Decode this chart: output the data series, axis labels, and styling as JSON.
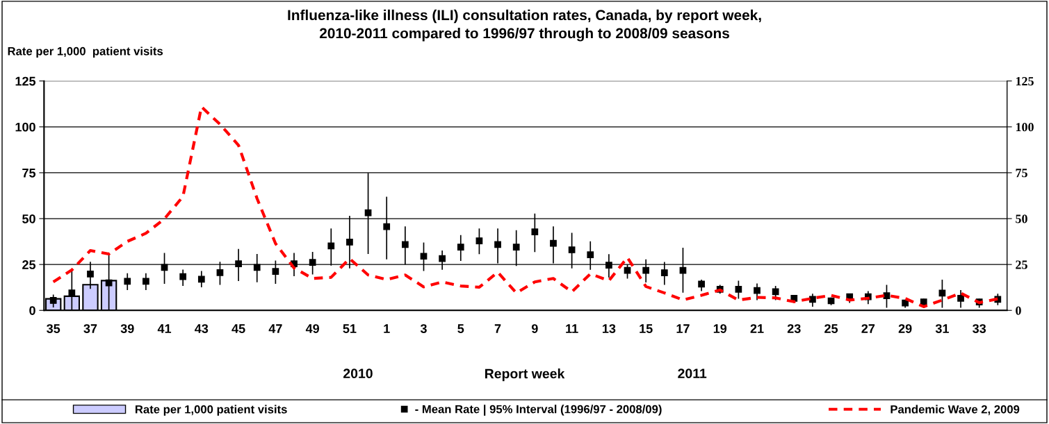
{
  "chart_data": {
    "type": "bar",
    "title": "Influenza-like illness (ILI) consultation rates, Canada, by report week,\n2010-2011 compared to 1996/97 through to 2008/09 seasons",
    "ylabel": "Rate per 1,000  patient visits",
    "xlabel": "Report week",
    "categories": [
      "35",
      null,
      "37",
      null,
      "39",
      null,
      "41",
      null,
      "43",
      null,
      "45",
      null,
      "47",
      null,
      "49",
      null,
      "51",
      null,
      "1",
      null,
      "3",
      null,
      "5",
      null,
      "7",
      null,
      "9",
      null,
      "11",
      null,
      "13",
      null,
      "15",
      null,
      "17",
      null,
      "19",
      null,
      "21",
      null,
      "23",
      null,
      "25",
      null,
      "27",
      null,
      "29",
      null,
      "31",
      null,
      "33",
      null
    ],
    "series": [
      {
        "name": "Rate per 1,000 patient visits",
        "color": "#ccccff",
        "values": [
          6.3,
          7.7,
          14.0,
          16.2,
          null,
          null,
          null,
          null,
          null,
          null,
          null,
          null,
          null,
          null,
          null,
          null,
          null,
          null,
          null,
          null,
          null,
          null,
          null,
          null,
          null,
          null,
          null,
          null,
          null,
          null,
          null,
          null,
          null,
          null,
          null,
          null,
          null,
          null,
          null,
          null,
          null,
          null,
          null,
          null,
          null,
          null,
          null,
          null,
          null,
          null,
          null,
          null
        ]
      },
      {
        "name": "- Mean Rate | 95% Interval (1996/97 - 2008/09)",
        "type": "scatter",
        "color": "#000000",
        "marker": "square",
        "values": [
          5.4,
          9.5,
          19.8,
          15.0,
          15.8,
          15.8,
          23.4,
          18.4,
          17.0,
          20.6,
          25.4,
          23.4,
          21.2,
          25.4,
          26.1,
          35.1,
          37.2,
          53.2,
          45.6,
          35.9,
          29.5,
          28.2,
          34.5,
          37.9,
          35.9,
          34.5,
          42.8,
          36.5,
          33.0,
          30.3,
          24.6,
          21.8,
          21.8,
          20.5,
          21.8,
          14.3,
          11.5,
          11.5,
          10.8,
          10.2,
          6.6,
          6.0,
          5.2,
          7.4,
          7.4,
          8.0,
          4.0,
          4.6,
          9.4,
          6.6,
          4.6,
          6.0
        ],
        "errors": [
          [
            1.6,
            8.6
          ],
          [
            0,
            22.2
          ],
          [
            11.7,
            26.5
          ],
          [
            0,
            30.0
          ],
          [
            11.1,
            20.2
          ],
          [
            11.1,
            20.2
          ],
          [
            14.5,
            31.3
          ],
          [
            13.3,
            22.2
          ],
          [
            12.6,
            21.5
          ],
          [
            13.9,
            26.5
          ],
          [
            16.0,
            33.5
          ],
          [
            15.3,
            30.7
          ],
          [
            14.5,
            27.1
          ],
          [
            18.6,
            31.3
          ],
          [
            19.6,
            31.9
          ],
          [
            24.4,
            44.6
          ],
          [
            22.9,
            51.5
          ],
          [
            30.7,
            74.9
          ],
          [
            27.8,
            61.9
          ],
          [
            25.0,
            45.8
          ],
          [
            21.5,
            37.0
          ],
          [
            22.1,
            32.6
          ],
          [
            26.9,
            41.0
          ],
          [
            30.6,
            44.6
          ],
          [
            25.6,
            44.6
          ],
          [
            24.2,
            43.7
          ],
          [
            31.8,
            52.8
          ],
          [
            25.6,
            45.8
          ],
          [
            22.9,
            42.3
          ],
          [
            22.1,
            37.6
          ],
          [
            17.9,
            30.6
          ],
          [
            17.3,
            25.0
          ],
          [
            15.2,
            27.8
          ],
          [
            13.9,
            26.4
          ],
          [
            9.6,
            34.1
          ],
          [
            10.5,
            16.7
          ],
          [
            9.1,
            13.9
          ],
          [
            6.3,
            16.2
          ],
          [
            5.6,
            14.7
          ],
          [
            5.6,
            13.3
          ],
          [
            4.1,
            7.7
          ],
          [
            2.0,
            9.1
          ],
          [
            2.8,
            7.0
          ],
          [
            4.1,
            9.1
          ],
          [
            3.4,
            10.5
          ],
          [
            1.4,
            13.9
          ],
          [
            1.4,
            5.5
          ],
          [
            1.4,
            6.3
          ],
          [
            1.4,
            16.7
          ],
          [
            1.4,
            11.1
          ],
          [
            1.4,
            6.3
          ],
          [
            2.8,
            9.1
          ]
        ]
      },
      {
        "name": "Pandemic Wave 2, 2009",
        "type": "line",
        "color": "#ff0000",
        "line_style": "dashed",
        "values": [
          15.5,
          22.0,
          32.6,
          30.7,
          37.6,
          42.0,
          49.9,
          62.0,
          110.9,
          101.4,
          90.0,
          61.0,
          36.4,
          23.1,
          17.4,
          18.0,
          28.2,
          19.3,
          16.8,
          19.3,
          12.8,
          15.5,
          13.3,
          12.6,
          20.8,
          9.5,
          15.5,
          17.4,
          10.1,
          19.9,
          16.2,
          28.8,
          13.0,
          9.5,
          5.7,
          8.2,
          11.1,
          5.6,
          7.1,
          6.8,
          4.7,
          6.6,
          8.2,
          5.6,
          6.6,
          8.2,
          6.5,
          2.0,
          5.6,
          9.4,
          4.2,
          6.3
        ]
      }
    ],
    "ylim": [
      0,
      125
    ],
    "yticks": [
      0,
      25,
      50,
      75,
      100,
      125
    ],
    "y2lim": [
      0,
      125
    ],
    "y2ticks": [
      0,
      25,
      50,
      75,
      100,
      125
    ],
    "grid": "y",
    "legend": "bottom",
    "annotations": [
      "2010",
      "2011"
    ]
  }
}
